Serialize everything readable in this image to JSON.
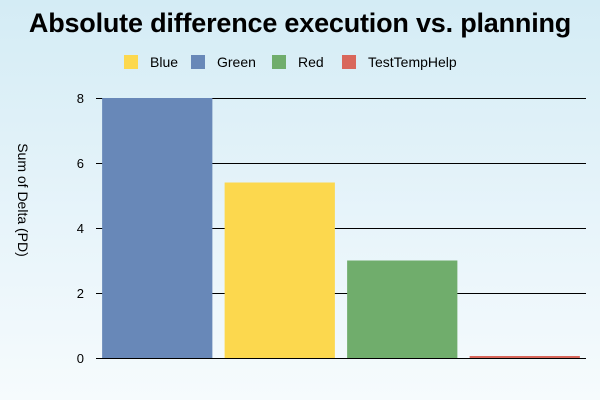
{
  "chart_data": {
    "type": "bar",
    "title": "Absolute difference execution vs. planning",
    "xlabel": "",
    "ylabel": "Sum of Delta (PD)",
    "ylim": [
      0,
      8
    ],
    "yticks": [
      0,
      2,
      4,
      6,
      8
    ],
    "grid": true,
    "legend_position": "top",
    "legend": [
      {
        "label": "Blue",
        "color": "#fcd84e"
      },
      {
        "label": "Green",
        "color": "#6888b8"
      },
      {
        "label": "Red",
        "color": "#70ad6c"
      },
      {
        "label": "TestTempHelp",
        "color": "#d9675b"
      }
    ],
    "bars": [
      {
        "series": "Green",
        "value": 8.0,
        "color": "#6888b8"
      },
      {
        "series": "Blue",
        "value": 5.4,
        "color": "#fcd84e"
      },
      {
        "series": "Red",
        "value": 3.0,
        "color": "#70ad6c"
      },
      {
        "series": "TestTempHelp",
        "value": 0.05,
        "color": "#d9675b"
      }
    ]
  }
}
